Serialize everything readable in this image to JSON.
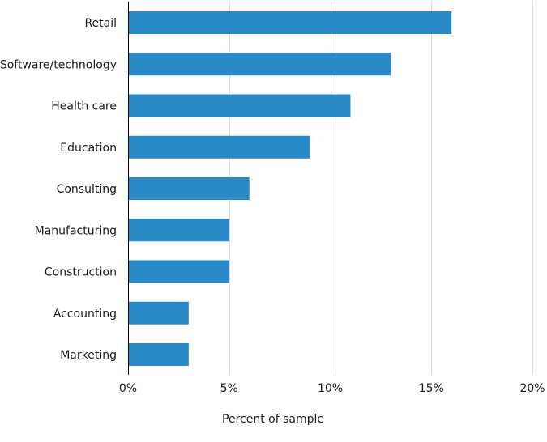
{
  "colors": {
    "bar": "#2a8ac8",
    "grid": "#d9d9d9",
    "axis": "#000000",
    "text": "#1a1a1a"
  },
  "chart_data": {
    "type": "bar",
    "orientation": "horizontal",
    "title": "",
    "xlabel": "Percent of sample",
    "ylabel": "",
    "xlim": [
      0,
      20
    ],
    "x_ticks": [
      0,
      5,
      10,
      15,
      20
    ],
    "x_tick_labels": [
      "0%",
      "5%",
      "10%",
      "15%",
      "20%"
    ],
    "grid": "vertical",
    "legend": "none",
    "categories": [
      "Retail",
      "Software/technology",
      "Health care",
      "Education",
      "Consulting",
      "Manufacturing",
      "Construction",
      "Accounting",
      "Marketing"
    ],
    "values": [
      16,
      13,
      11,
      9,
      6,
      5,
      5,
      3,
      3
    ]
  }
}
